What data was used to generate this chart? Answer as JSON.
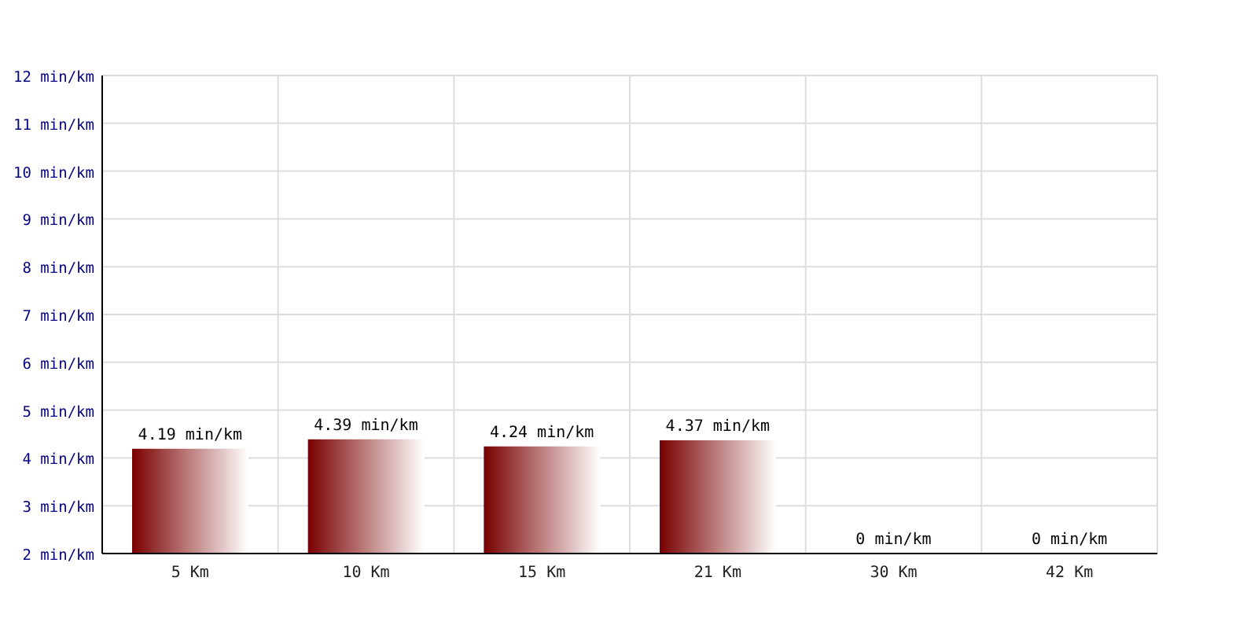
{
  "chart_data": {
    "type": "bar",
    "categories": [
      "5 Km",
      "10 Km",
      "15 Km",
      "21 Km",
      "30 Km",
      "42 Km"
    ],
    "values": [
      4.19,
      4.39,
      4.24,
      4.37,
      null,
      null
    ],
    "value_labels": [
      "4.19 min/km",
      "4.39 min/km",
      "4.24 min/km",
      "4.37 min/km",
      "0 min/km",
      "0 min/km"
    ],
    "color": "#7a0000",
    "ylim": [
      2,
      12
    ],
    "yticks": [
      {
        "value": 2,
        "label": "2 min/km"
      },
      {
        "value": 3,
        "label": "3 min/km"
      },
      {
        "value": 4,
        "label": "4 min/km"
      },
      {
        "value": 5,
        "label": "5 min/km"
      },
      {
        "value": 6,
        "label": "6 min/km"
      },
      {
        "value": 7,
        "label": "7 min/km"
      },
      {
        "value": 8,
        "label": "8 min/km"
      },
      {
        "value": 9,
        "label": "9 min/km"
      },
      {
        "value": 10,
        "label": "10 min/km"
      },
      {
        "value": 11,
        "label": "11 min/km"
      },
      {
        "value": 12,
        "label": "12 min/km"
      }
    ],
    "grid": true
  }
}
